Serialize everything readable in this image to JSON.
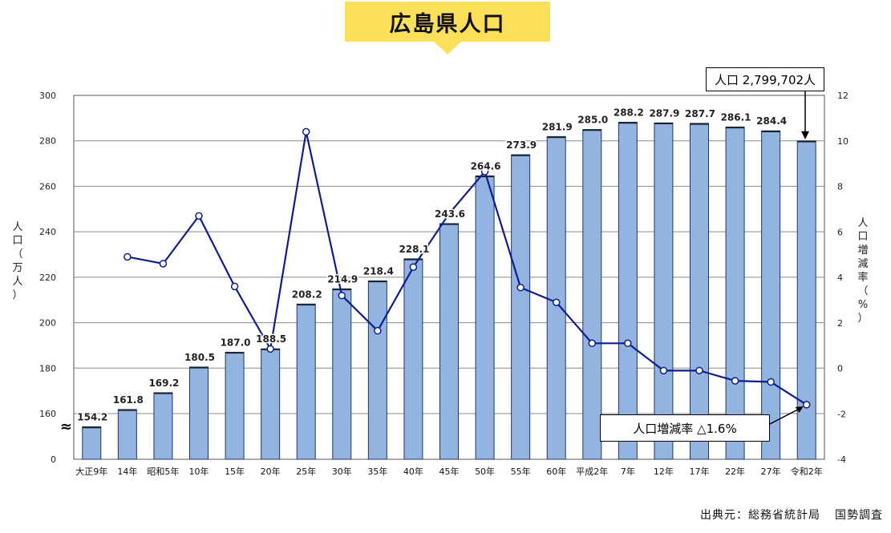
{
  "title": "広島県人口",
  "source": {
    "label": "出典元：総務省統計局",
    "name": "国勢調査"
  },
  "callouts": {
    "population": "人口 2,799,702人",
    "rate": "人口増減率 △1.6%"
  },
  "colors": {
    "bar": "#93b3e0",
    "bar_edge": "#1f3a66",
    "line": "#0e1e8c",
    "title_bg": "#fde05a"
  },
  "chart_data": {
    "type": "bar",
    "categories": [
      "大正9年",
      "14年",
      "昭和5年",
      "10年",
      "15年",
      "20年",
      "25年",
      "30年",
      "35年",
      "40年",
      "45年",
      "50年",
      "55年",
      "60年",
      "平成2年",
      "7年",
      "12年",
      "17年",
      "22年",
      "27年",
      "令和2年"
    ],
    "series": [
      {
        "values": [
          154.2,
          161.8,
          169.2,
          180.5,
          187.0,
          188.5,
          208.2,
          214.9,
          218.4,
          228.1,
          243.6,
          264.6,
          273.9,
          281.9,
          285.0,
          288.2,
          287.9,
          287.7,
          286.1,
          284.4,
          279.97
        ],
        "labels": [
          "154.2",
          "161.8",
          "169.2",
          "180.5",
          "187.0",
          "188.5",
          "208.2",
          "214.9",
          "218.4",
          "228.1",
          "243.6",
          "264.6",
          "273.9",
          "281.9",
          "285.0",
          "288.2",
          "287.9",
          "287.7",
          "286.1",
          "284.4",
          ""
        ]
      },
      {
        "type": "line",
        "values": [
          null,
          4.9,
          4.6,
          6.7,
          3.6,
          0.85,
          10.4,
          3.2,
          1.65,
          4.45,
          6.8,
          8.65,
          3.55,
          2.9,
          1.1,
          1.1,
          -0.1,
          -0.1,
          -0.55,
          -0.6,
          -1.6
        ]
      }
    ],
    "ylabel": "人口（万人）",
    "y2label": "人口増減率（%）",
    "ylim": [
      140,
      300
    ],
    "yticks": [
      300,
      280,
      260,
      240,
      220,
      200,
      180,
      160,
      0
    ],
    "y2lim": [
      -4,
      12
    ],
    "y2ticks": [
      12,
      10,
      8,
      6,
      4,
      2,
      0,
      -2,
      -4
    ],
    "axis_break": "≈",
    "grid": true
  }
}
